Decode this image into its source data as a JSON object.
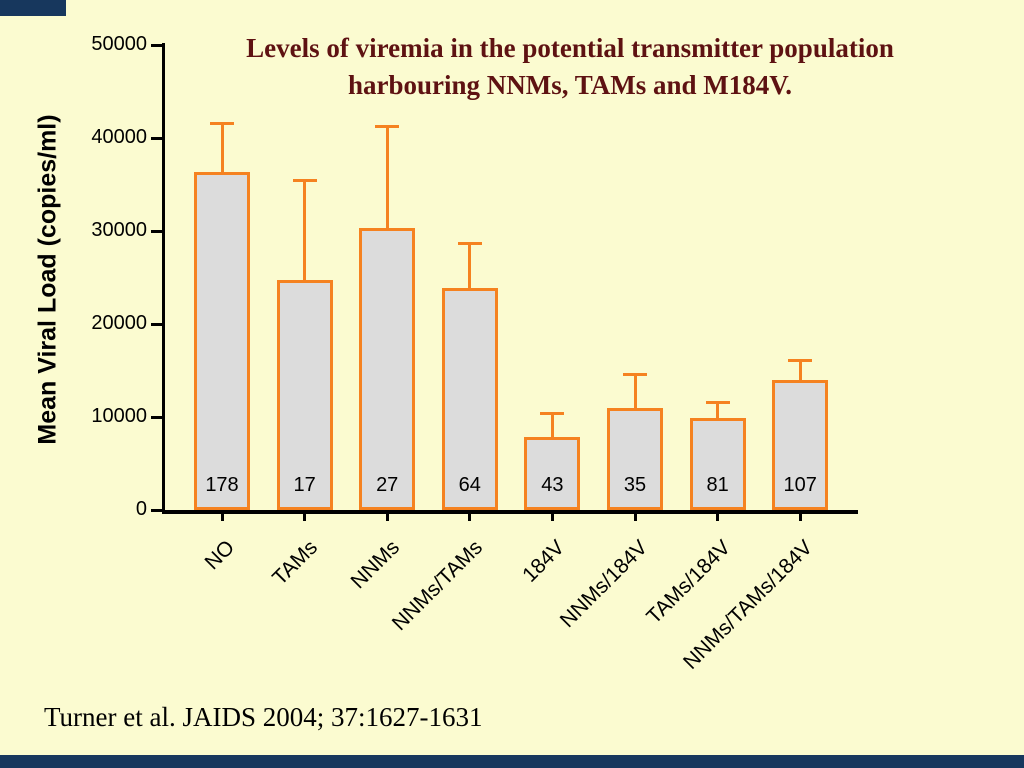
{
  "slide": {
    "title_line1": "Levels of viremia in the potential transmitter population",
    "title_line2": "harbouring NNMs, TAMs and M184V.",
    "citation": "Turner et al. JAIDS 2004; 37:1627-1631",
    "colors": {
      "background": "#FBFBD0",
      "frame": "#17375D",
      "bar_fill": "#DCDCDC",
      "bar_border": "#F58220",
      "title_text": "#5E1212"
    }
  },
  "chart_data": {
    "type": "bar",
    "title": "Levels of viremia in the potential transmitter population harbouring NNMs, TAMs and M184V.",
    "ylabel": "Mean Viral Load (copies/ml)",
    "xlabel": "",
    "ylim": [
      0,
      50000
    ],
    "yticks": [
      0,
      10000,
      20000,
      30000,
      40000,
      50000
    ],
    "categories": [
      "NO",
      "TAMs",
      "NNMs",
      "NNMs/TAMs",
      "184V",
      "NNMs/184V",
      "TAMs/184V",
      "NNMs/TAMs/184V"
    ],
    "values": [
      36300,
      24700,
      30300,
      23900,
      7800,
      11000,
      9900,
      14000
    ],
    "error_upper": [
      41600,
      35500,
      41300,
      28700,
      10400,
      14600,
      11600,
      16100
    ],
    "n_labels": [
      "178",
      "17",
      "27",
      "64",
      "43",
      "35",
      "81",
      "107"
    ],
    "grid": false,
    "legend": "none"
  }
}
